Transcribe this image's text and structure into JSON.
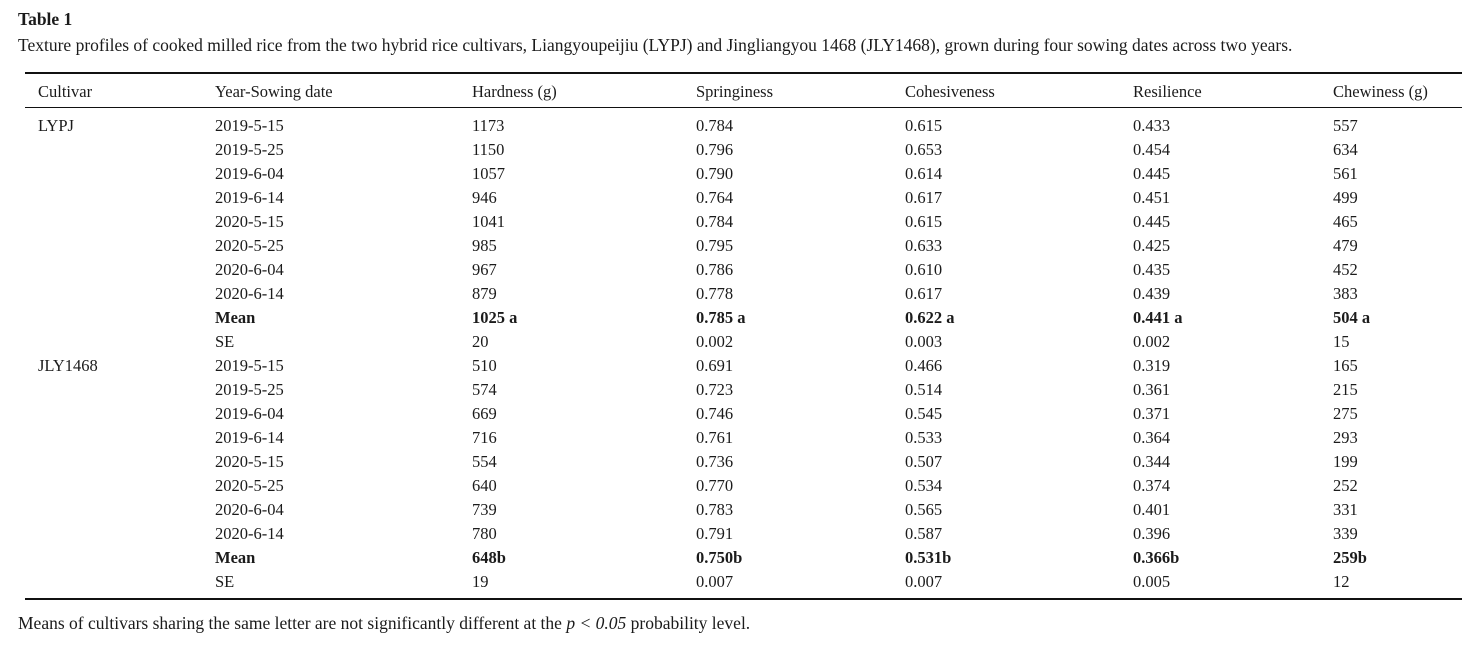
{
  "table": {
    "label": "Table 1",
    "caption": "Texture profiles of cooked milled rice from the two hybrid rice cultivars, Liangyoupeijiu (LYPJ) and Jingliangyou 1468 (JLY1468), grown during four sowing dates across two years.",
    "columns": [
      "Cultivar",
      "Year-Sowing date",
      "Hardness (g)",
      "Springiness",
      "Cohesiveness",
      "Resilience",
      "Chewiness (g)"
    ],
    "rows": [
      {
        "cells": [
          "LYPJ",
          "2019-5-15",
          "1173",
          "0.784",
          "0.615",
          "0.433",
          "557"
        ],
        "bold": false
      },
      {
        "cells": [
          "",
          "2019-5-25",
          "1150",
          "0.796",
          "0.653",
          "0.454",
          "634"
        ],
        "bold": false
      },
      {
        "cells": [
          "",
          "2019-6-04",
          "1057",
          "0.790",
          "0.614",
          "0.445",
          "561"
        ],
        "bold": false
      },
      {
        "cells": [
          "",
          "2019-6-14",
          "946",
          "0.764",
          "0.617",
          "0.451",
          "499"
        ],
        "bold": false
      },
      {
        "cells": [
          "",
          "2020-5-15",
          "1041",
          "0.784",
          "0.615",
          "0.445",
          "465"
        ],
        "bold": false
      },
      {
        "cells": [
          "",
          "2020-5-25",
          "985",
          "0.795",
          "0.633",
          "0.425",
          "479"
        ],
        "bold": false
      },
      {
        "cells": [
          "",
          "2020-6-04",
          "967",
          "0.786",
          "0.610",
          "0.435",
          "452"
        ],
        "bold": false
      },
      {
        "cells": [
          "",
          "2020-6-14",
          "879",
          "0.778",
          "0.617",
          "0.439",
          "383"
        ],
        "bold": false
      },
      {
        "cells": [
          "",
          "Mean",
          "1025 a",
          "0.785 a",
          "0.622 a",
          "0.441 a",
          "504 a"
        ],
        "bold": true
      },
      {
        "cells": [
          "",
          "SE",
          "20",
          "0.002",
          "0.003",
          "0.002",
          "15"
        ],
        "bold": false
      },
      {
        "cells": [
          "JLY1468",
          "2019-5-15",
          "510",
          "0.691",
          "0.466",
          "0.319",
          "165"
        ],
        "bold": false
      },
      {
        "cells": [
          "",
          "2019-5-25",
          "574",
          "0.723",
          "0.514",
          "0.361",
          "215"
        ],
        "bold": false
      },
      {
        "cells": [
          "",
          "2019-6-04",
          "669",
          "0.746",
          "0.545",
          "0.371",
          "275"
        ],
        "bold": false
      },
      {
        "cells": [
          "",
          "2019-6-14",
          "716",
          "0.761",
          "0.533",
          "0.364",
          "293"
        ],
        "bold": false
      },
      {
        "cells": [
          "",
          "2020-5-15",
          "554",
          "0.736",
          "0.507",
          "0.344",
          "199"
        ],
        "bold": false
      },
      {
        "cells": [
          "",
          "2020-5-25",
          "640",
          "0.770",
          "0.534",
          "0.374",
          "252"
        ],
        "bold": false
      },
      {
        "cells": [
          "",
          "2020-6-04",
          "739",
          "0.783",
          "0.565",
          "0.401",
          "331"
        ],
        "bold": false
      },
      {
        "cells": [
          "",
          "2020-6-14",
          "780",
          "0.791",
          "0.587",
          "0.396",
          "339"
        ],
        "bold": false
      },
      {
        "cells": [
          "",
          "Mean",
          "648b",
          "0.750b",
          "0.531b",
          "0.366b",
          "259b"
        ],
        "bold": true
      },
      {
        "cells": [
          "",
          "SE",
          "19",
          "0.007",
          "0.007",
          "0.005",
          "12"
        ],
        "bold": false
      }
    ],
    "footnote_prefix": "Means of cultivars sharing the same letter are not significantly different at the ",
    "footnote_italic": "p < 0.05",
    "footnote_suffix": " probability level."
  },
  "colors": {
    "text": "#1b1b1b",
    "rule": "#111111",
    "background": "#ffffff"
  }
}
